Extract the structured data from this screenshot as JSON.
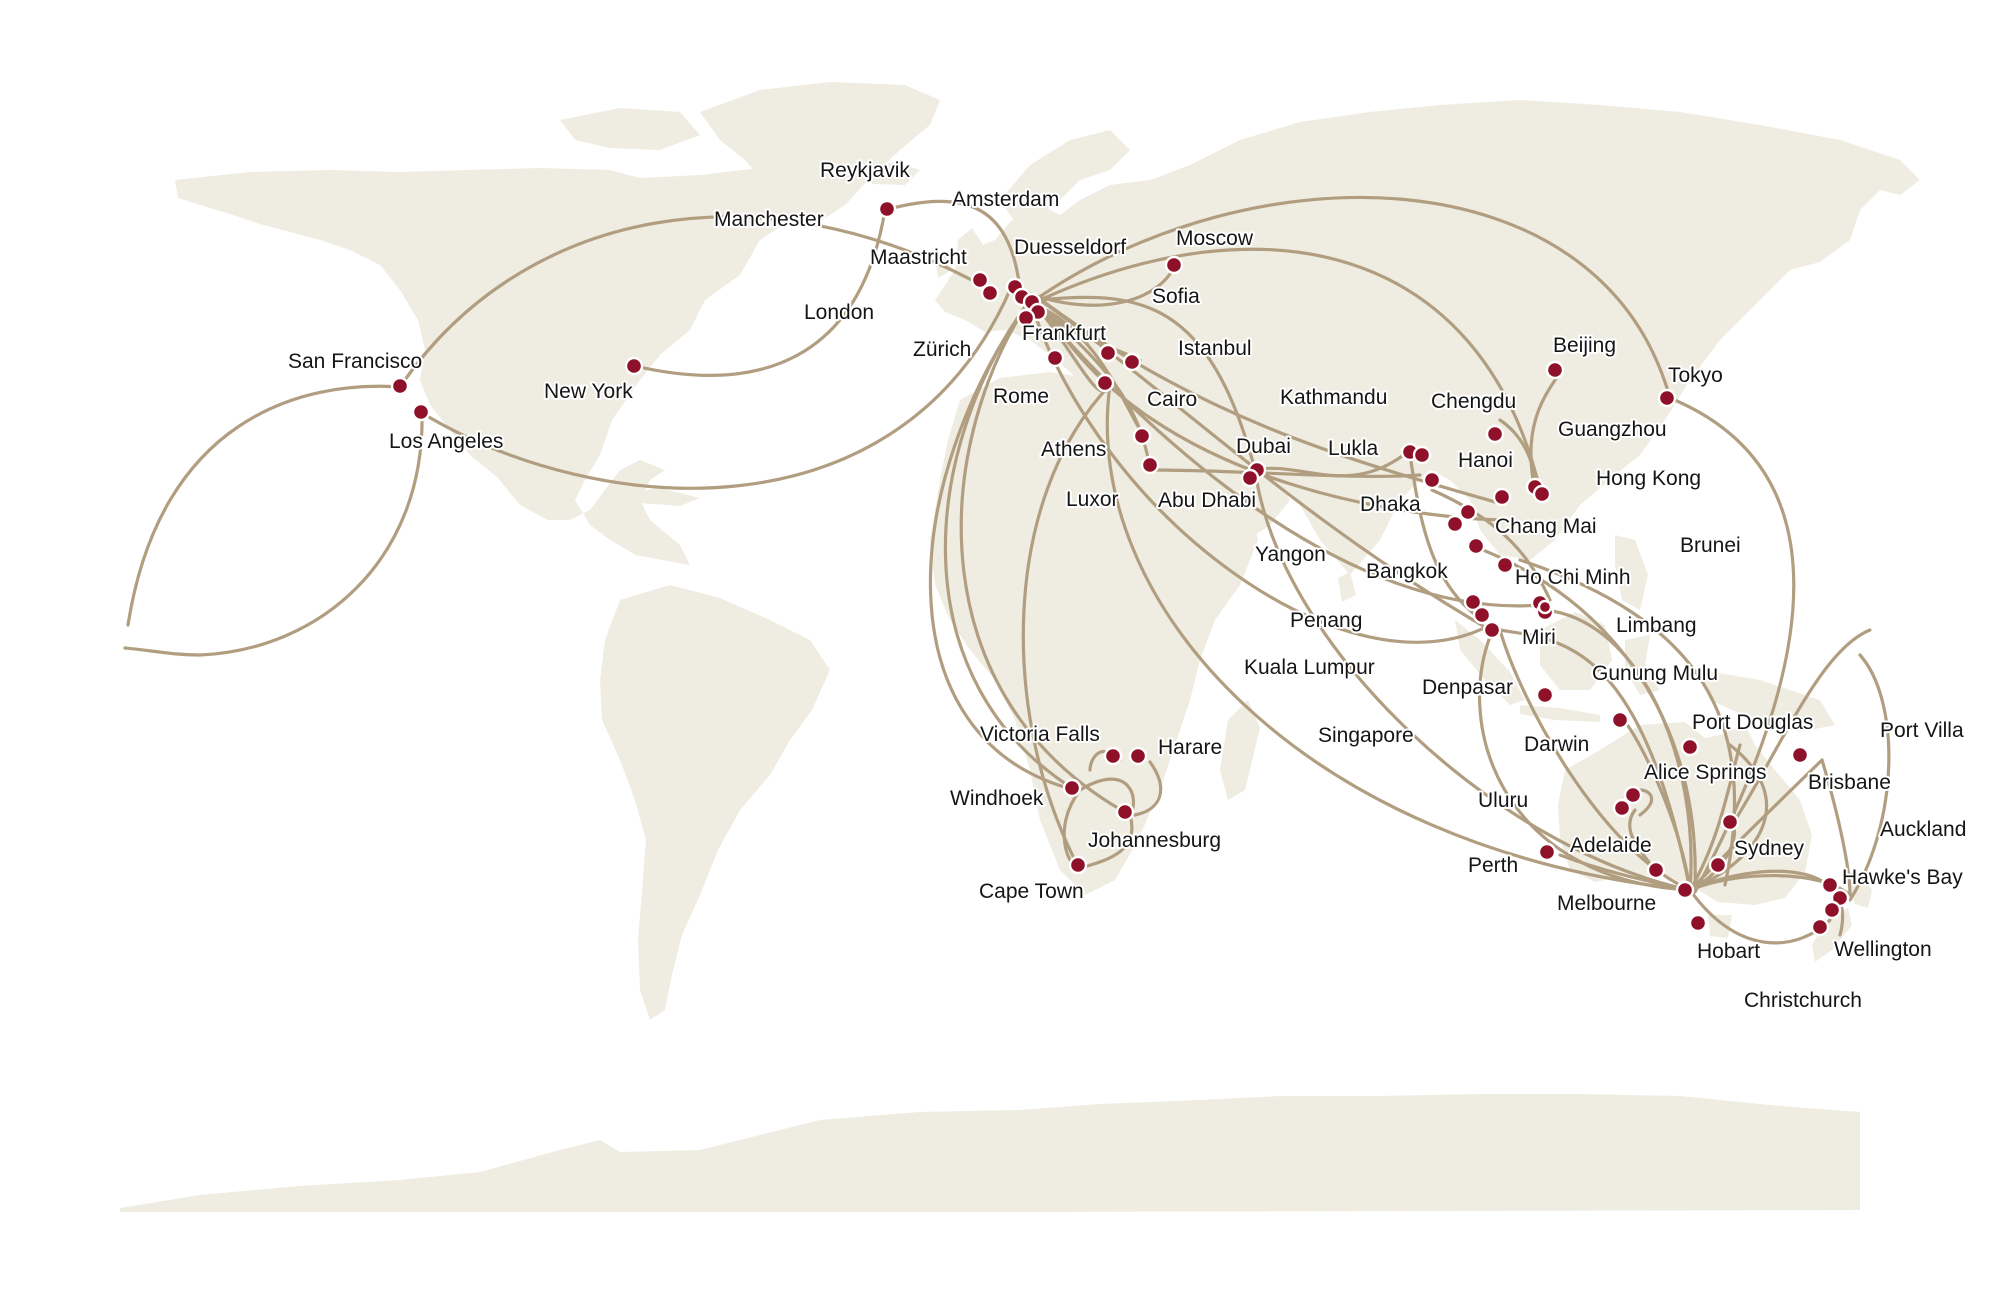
{
  "map": {
    "land_color": "#efece1",
    "route_color": "#b19e80",
    "city_color": "#8e1029",
    "label_color": "#151515"
  },
  "cities": [
    {
      "id": "reykjavik",
      "name": "Reykjavik"
    },
    {
      "id": "amsterdam",
      "name": "Amsterdam"
    },
    {
      "id": "manchester",
      "name": "Manchester"
    },
    {
      "id": "moscow",
      "name": "Moscow"
    },
    {
      "id": "duesseldorf",
      "name": "Duesseldorf"
    },
    {
      "id": "maastricht",
      "name": "Maastricht"
    },
    {
      "id": "sofia",
      "name": "Sofia"
    },
    {
      "id": "london",
      "name": "London"
    },
    {
      "id": "frankfurt",
      "name": "Frankfurt"
    },
    {
      "id": "zurich",
      "name": "Zürich"
    },
    {
      "id": "istanbul",
      "name": "Istanbul"
    },
    {
      "id": "san-francisco",
      "name": "San Francisco"
    },
    {
      "id": "new-york",
      "name": "New York"
    },
    {
      "id": "rome",
      "name": "Rome"
    },
    {
      "id": "cairo",
      "name": "Cairo"
    },
    {
      "id": "kathmandu",
      "name": "Kathmandu"
    },
    {
      "id": "los-angeles",
      "name": "Los Angeles"
    },
    {
      "id": "athens",
      "name": "Athens"
    },
    {
      "id": "dubai",
      "name": "Dubai"
    },
    {
      "id": "lukla",
      "name": "Lukla"
    },
    {
      "id": "luxor",
      "name": "Luxor"
    },
    {
      "id": "abu-dhabi",
      "name": "Abu Dhabi"
    },
    {
      "id": "dhaka",
      "name": "Dhaka"
    },
    {
      "id": "yangon",
      "name": "Yangon"
    },
    {
      "id": "bangkok",
      "name": "Bangkok"
    },
    {
      "id": "chang-mai",
      "name": "Chang Mai"
    },
    {
      "id": "hanoi",
      "name": "Hanoi"
    },
    {
      "id": "chengdu",
      "name": "Chengdu"
    },
    {
      "id": "beijing",
      "name": "Beijing"
    },
    {
      "id": "guangzhou",
      "name": "Guangzhou"
    },
    {
      "id": "hong-kong",
      "name": "Hong Kong"
    },
    {
      "id": "tokyo",
      "name": "Tokyo"
    },
    {
      "id": "brunei",
      "name": "Brunei"
    },
    {
      "id": "ho-chi-minh",
      "name": "Ho Chi Minh"
    },
    {
      "id": "penang",
      "name": "Penang"
    },
    {
      "id": "miri",
      "name": "Miri"
    },
    {
      "id": "limbang",
      "name": "Limbang"
    },
    {
      "id": "kuala-lumpur",
      "name": "Kuala Lumpur"
    },
    {
      "id": "gunung-mulu",
      "name": "Gunung Mulu"
    },
    {
      "id": "denpasar",
      "name": "Denpasar"
    },
    {
      "id": "singapore",
      "name": "Singapore"
    },
    {
      "id": "port-douglas",
      "name": "Port Douglas"
    },
    {
      "id": "port-villa",
      "name": "Port Villa"
    },
    {
      "id": "darwin",
      "name": "Darwin"
    },
    {
      "id": "victoria-falls",
      "name": "Victoria Falls"
    },
    {
      "id": "harare",
      "name": "Harare"
    },
    {
      "id": "alice-springs",
      "name": "Alice Springs"
    },
    {
      "id": "brisbane",
      "name": "Brisbane"
    },
    {
      "id": "windhoek",
      "name": "Windhoek"
    },
    {
      "id": "uluru",
      "name": "Uluru"
    },
    {
      "id": "auckland",
      "name": "Auckland"
    },
    {
      "id": "johannesburg",
      "name": "Johannesburg"
    },
    {
      "id": "adelaide",
      "name": "Adelaide"
    },
    {
      "id": "sydney",
      "name": "Sydney"
    },
    {
      "id": "perth",
      "name": "Perth"
    },
    {
      "id": "hawkes-bay",
      "name": "Hawke's Bay"
    },
    {
      "id": "cape-town",
      "name": "Cape Town"
    },
    {
      "id": "melbourne",
      "name": "Melbourne"
    },
    {
      "id": "hobart",
      "name": "Hobart"
    },
    {
      "id": "wellington",
      "name": "Wellington"
    },
    {
      "id": "christchurch",
      "name": "Christchurch"
    }
  ]
}
